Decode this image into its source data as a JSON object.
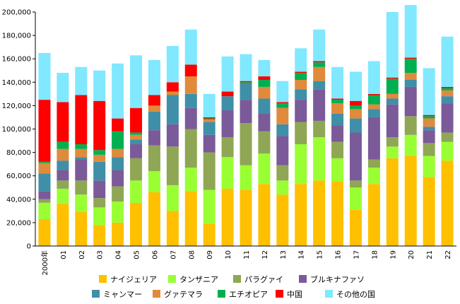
{
  "chart_data": {
    "type": "bar",
    "stacked": true,
    "categories": [
      "2000年",
      "01",
      "02",
      "03",
      "04",
      "05",
      "06",
      "07",
      "08",
      "09",
      "10",
      "11",
      "12",
      "13",
      "14",
      "15",
      "16",
      "17",
      "18",
      "19",
      "20",
      "21",
      "22"
    ],
    "ylim": [
      0,
      200000
    ],
    "yticks": [
      0,
      20000,
      40000,
      60000,
      80000,
      100000,
      120000,
      140000,
      160000,
      180000,
      200000
    ],
    "ytick_labels": [
      "0",
      "20,000",
      "40,000",
      "60,000",
      "80,000",
      "100,000",
      "120,000",
      "140,000",
      "160,000",
      "180,000",
      "200,000"
    ],
    "grid": false,
    "legend_position": "bottom",
    "series": [
      {
        "name": "ナイジェリア",
        "color": "#FFC000",
        "values": [
          23000,
          36000,
          29000,
          18000,
          20000,
          37000,
          46000,
          30000,
          47000,
          19000,
          49000,
          48000,
          53000,
          44000,
          53000,
          56000,
          55000,
          31000,
          53000,
          75000,
          77000,
          59000,
          73000
        ]
      },
      {
        "name": "タンザニア",
        "color": "#99FF33",
        "values": [
          14000,
          13000,
          15000,
          15000,
          18000,
          19000,
          18000,
          22000,
          20000,
          29000,
          27000,
          21000,
          26000,
          12000,
          34000,
          37000,
          20000,
          19000,
          14000,
          10000,
          18000,
          18000,
          16000
        ]
      },
      {
        "name": "パラグァイ",
        "color": "#8FA654",
        "values": [
          3000,
          7000,
          12000,
          8000,
          13000,
          19000,
          22000,
          33000,
          33000,
          32000,
          17000,
          36000,
          19000,
          13000,
          19000,
          14000,
          14000,
          6000,
          7000,
          8000,
          16000,
          11000,
          8000
        ]
      },
      {
        "name": "ブルキナファソ",
        "color": "#7B5A99",
        "values": [
          7000,
          9000,
          18000,
          15000,
          14000,
          12000,
          13000,
          19000,
          18000,
          15000,
          23000,
          20000,
          15000,
          25000,
          19000,
          27000,
          14000,
          41000,
          36000,
          28000,
          25000,
          11000,
          25000
        ]
      },
      {
        "name": "ミャンマー",
        "color": "#3F8FA8",
        "values": [
          15000,
          8000,
          2000,
          16000,
          11000,
          4000,
          16000,
          25000,
          12000,
          11000,
          12000,
          14000,
          13000,
          10000,
          9000,
          7000,
          10000,
          12000,
          7000,
          5000,
          6000,
          3000,
          6000
        ]
      },
      {
        "name": "グァテマラ",
        "color": "#E08A3C",
        "values": [
          9000,
          10000,
          7000,
          6000,
          7000,
          4000,
          5000,
          3000,
          15000,
          2000,
          0,
          0,
          10000,
          14000,
          8000,
          12000,
          9000,
          8000,
          4000,
          4000,
          6000,
          7000,
          5000
        ]
      },
      {
        "name": "エチオピア",
        "color": "#00B050",
        "values": [
          1000,
          6000,
          4000,
          4000,
          15000,
          2000,
          0,
          0,
          0,
          1000,
          0,
          1000,
          6000,
          4000,
          6000,
          4000,
          3000,
          3000,
          8000,
          13000,
          12000,
          2000,
          2000
        ]
      },
      {
        "name": "中国",
        "color": "#FF0000",
        "values": [
          53000,
          34000,
          42000,
          42000,
          11000,
          21000,
          9000,
          8000,
          10000,
          1000,
          4000,
          1000,
          3000,
          1000,
          1000,
          1000,
          1000,
          4000,
          1000,
          1000,
          1000,
          1000,
          1000
        ]
      },
      {
        "name": "その他の国",
        "color": "#80E8FF",
        "values": [
          40000,
          25000,
          24000,
          26000,
          47000,
          45000,
          30000,
          31000,
          30000,
          20000,
          30000,
          23000,
          14000,
          18000,
          20000,
          27000,
          27000,
          25000,
          28000,
          56000,
          45000,
          40000,
          43000
        ]
      }
    ]
  }
}
